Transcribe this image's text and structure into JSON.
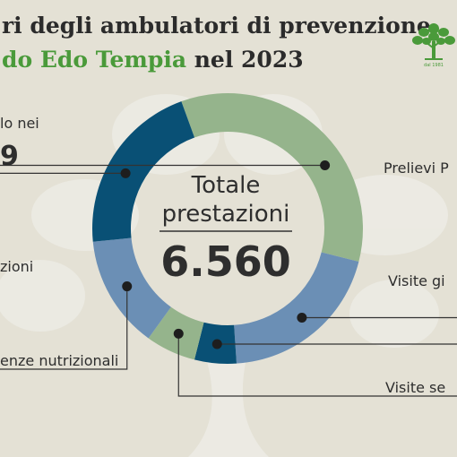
{
  "header": {
    "title_line1": "ri degli ambulatori di prevenzione",
    "title_line2_green": "do Edo Tempia",
    "title_line2_rest": " nel 2023"
  },
  "logo": {
    "icon": "tree-icon",
    "year": "dal 1981",
    "color": "#4a9a3a"
  },
  "center": {
    "label_line1": "Totale",
    "label_line2": "prestazioni",
    "total": "6.560"
  },
  "chart_data": {
    "type": "donut",
    "total": 6560,
    "segments": [
      {
        "label": "lo nei",
        "value_text": "9",
        "share": 0.345,
        "color": "#95b48c"
      },
      {
        "label": "Prelievi P",
        "share": 0.2,
        "color": "#6b8fb5"
      },
      {
        "label": "Visite gi",
        "share": 0.05,
        "color": "#095075"
      },
      {
        "label": "Visite se",
        "share": 0.06,
        "color": "#95b48c"
      },
      {
        "label": "enze nutrizionali",
        "share": 0.135,
        "color": "#6b8fb5"
      },
      {
        "label": "zioni",
        "share": 0.21,
        "color": "#095075"
      }
    ]
  }
}
